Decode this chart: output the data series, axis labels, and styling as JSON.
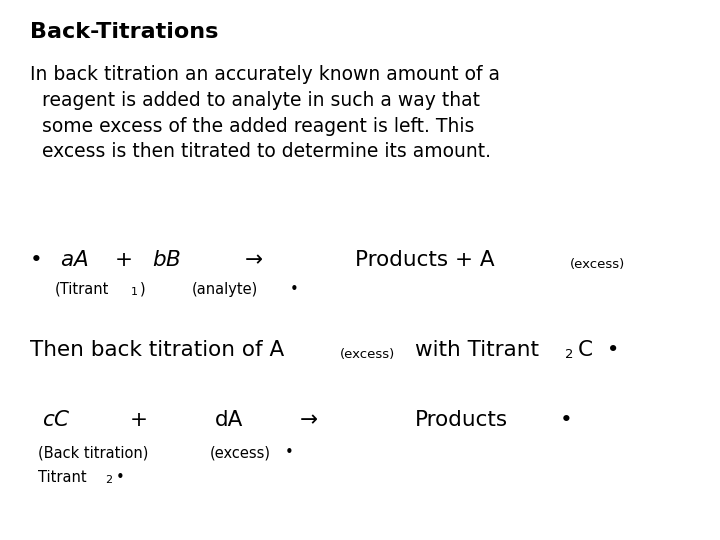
{
  "title": "Back-Titrations",
  "bg_color": "#ffffff",
  "text_color": "#000000",
  "figsize": [
    7.2,
    5.4
  ],
  "dpi": 100,
  "para": "In back titration an accurately known amount of a\n  reagent is added to analyte in such a way that\n  some excess of the added reagent is left. This\n  excess is then titrated to determine its amount.",
  "font_para": 13.5,
  "font_main": 15.5,
  "font_sub": 9.5,
  "font_small": 10.5,
  "font_title": 16
}
